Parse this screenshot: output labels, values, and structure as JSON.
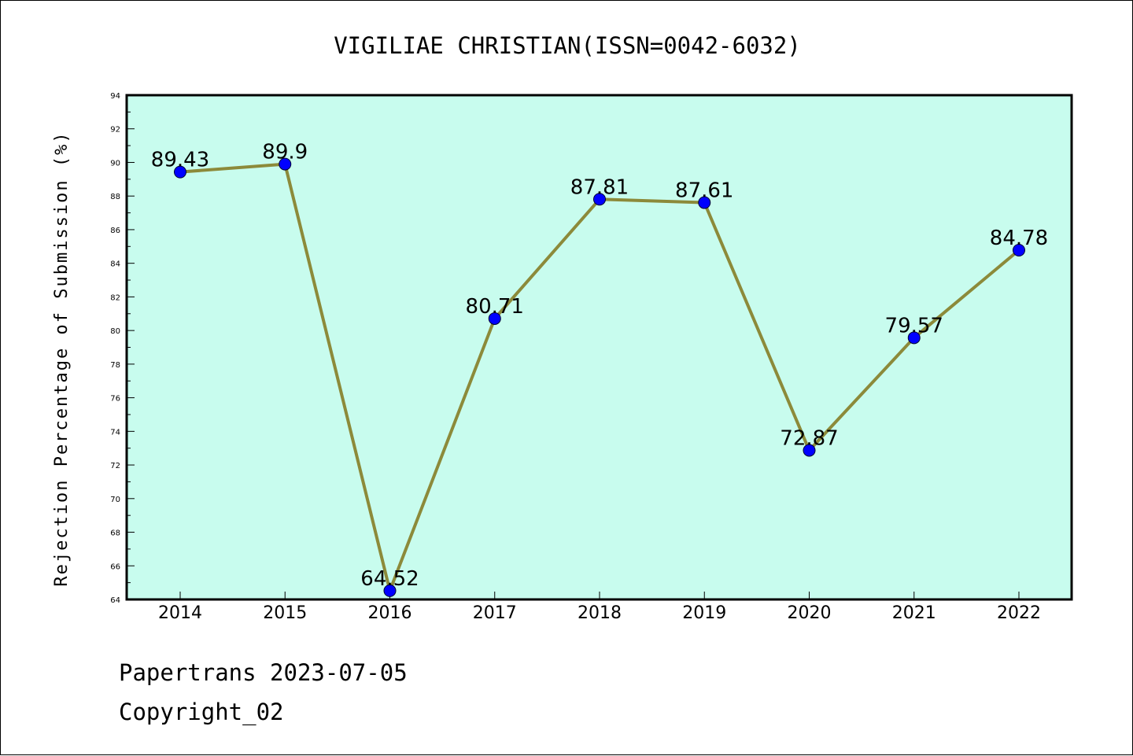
{
  "chart_data": {
    "type": "line",
    "title": "VIGILIAE CHRISTIAN(ISSN=0042-6032)",
    "xlabel": "",
    "ylabel": "Rejection Percentage of Submission (%)",
    "categories": [
      "2014",
      "2015",
      "2016",
      "2017",
      "2018",
      "2019",
      "2020",
      "2021",
      "2022"
    ],
    "series": [
      {
        "values": [
          89.43,
          89.9,
          64.52,
          80.71,
          87.81,
          87.61,
          72.87,
          79.57,
          84.78
        ],
        "labels": [
          "89.43",
          "89.9",
          "64.52",
          "80.71",
          "87.81",
          "87.61",
          "72.87",
          "79.57",
          "84.78"
        ]
      }
    ],
    "ylim": [
      64,
      94
    ],
    "yticks": [
      "64",
      "66",
      "68",
      "70",
      "72",
      "74",
      "76",
      "78",
      "80",
      "82",
      "84",
      "86",
      "88",
      "90",
      "92",
      "94"
    ],
    "grid": false,
    "colors": {
      "plot_background": "#c8fcee",
      "line": "#8c8a3a",
      "marker": "#0000ff"
    }
  },
  "footer": {
    "line1": "Papertrans 2023-07-05",
    "line2": "Copyright_02"
  }
}
